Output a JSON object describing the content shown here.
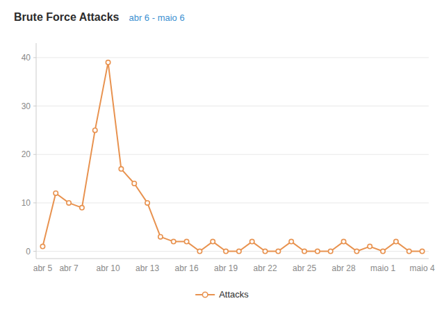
{
  "chart_data": {
    "type": "line",
    "title": "Brute Force Attacks",
    "subtitle": "abr 6 - maio 6",
    "categories": [
      "abr 5",
      null,
      "abr 7",
      null,
      null,
      "abr 10",
      null,
      null,
      "abr 13",
      null,
      null,
      "abr 16",
      null,
      null,
      "abr 19",
      null,
      null,
      "abr 22",
      null,
      null,
      "abr 25",
      null,
      null,
      "abr 28",
      null,
      null,
      "maio 1",
      null,
      null,
      "maio 4"
    ],
    "series": [
      {
        "name": "Attacks",
        "color": "#e8924f",
        "marker": "circle",
        "values": [
          1,
          12,
          10,
          9,
          25,
          39,
          17,
          14,
          10,
          3,
          2,
          2,
          0,
          2,
          0,
          0,
          2,
          0,
          0,
          2,
          0,
          0,
          0,
          2,
          0,
          1,
          0,
          2,
          0,
          0
        ]
      }
    ],
    "ylim": [
      -1.5,
      43
    ],
    "yticks": [
      0,
      10,
      20,
      30,
      40
    ],
    "grid": true,
    "legend": "bottom"
  }
}
